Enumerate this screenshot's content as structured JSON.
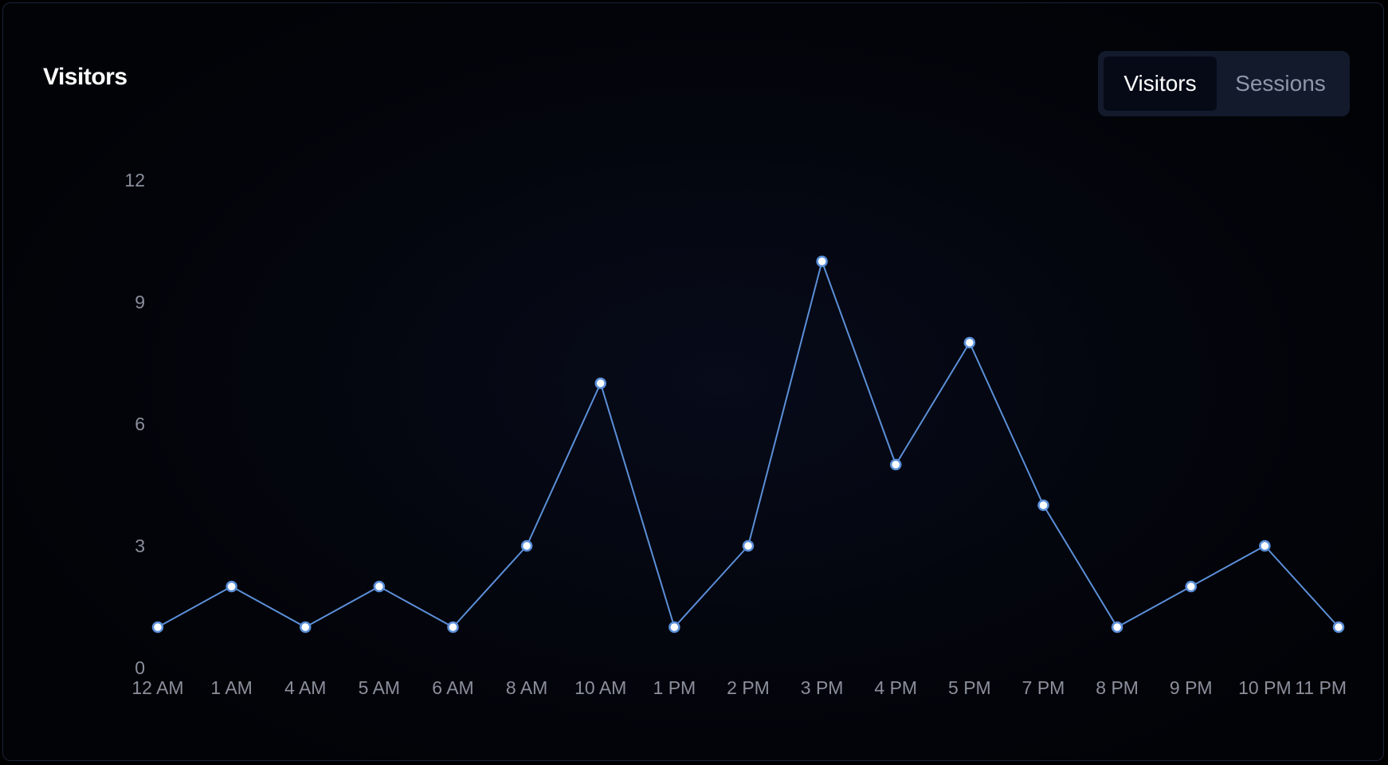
{
  "card": {
    "title": "Visitors"
  },
  "toggle": {
    "options": [
      {
        "label": "Visitors",
        "active": true
      },
      {
        "label": "Sessions",
        "active": false
      }
    ]
  },
  "chart_data": {
    "type": "line",
    "title": "",
    "xlabel": "",
    "ylabel": "",
    "categories": [
      "12 AM",
      "1 AM",
      "4 AM",
      "5 AM",
      "6 AM",
      "8 AM",
      "10 AM",
      "1 PM",
      "2 PM",
      "3 PM",
      "4 PM",
      "5 PM",
      "7 PM",
      "8 PM",
      "9 PM",
      "10 PM",
      "11 PM"
    ],
    "series": [
      {
        "values": [
          1,
          2,
          1,
          2,
          1,
          3,
          7,
          1,
          3,
          10,
          5,
          8,
          4,
          1,
          2,
          3,
          1
        ],
        "color": "#5b8fd8"
      }
    ],
    "ylim": [
      0,
      12
    ],
    "yticks": [
      0,
      3,
      6,
      9,
      12
    ],
    "grid": false,
    "legend": "none",
    "marker_fill": "#ffffff",
    "accent": "#5b8fd8"
  }
}
